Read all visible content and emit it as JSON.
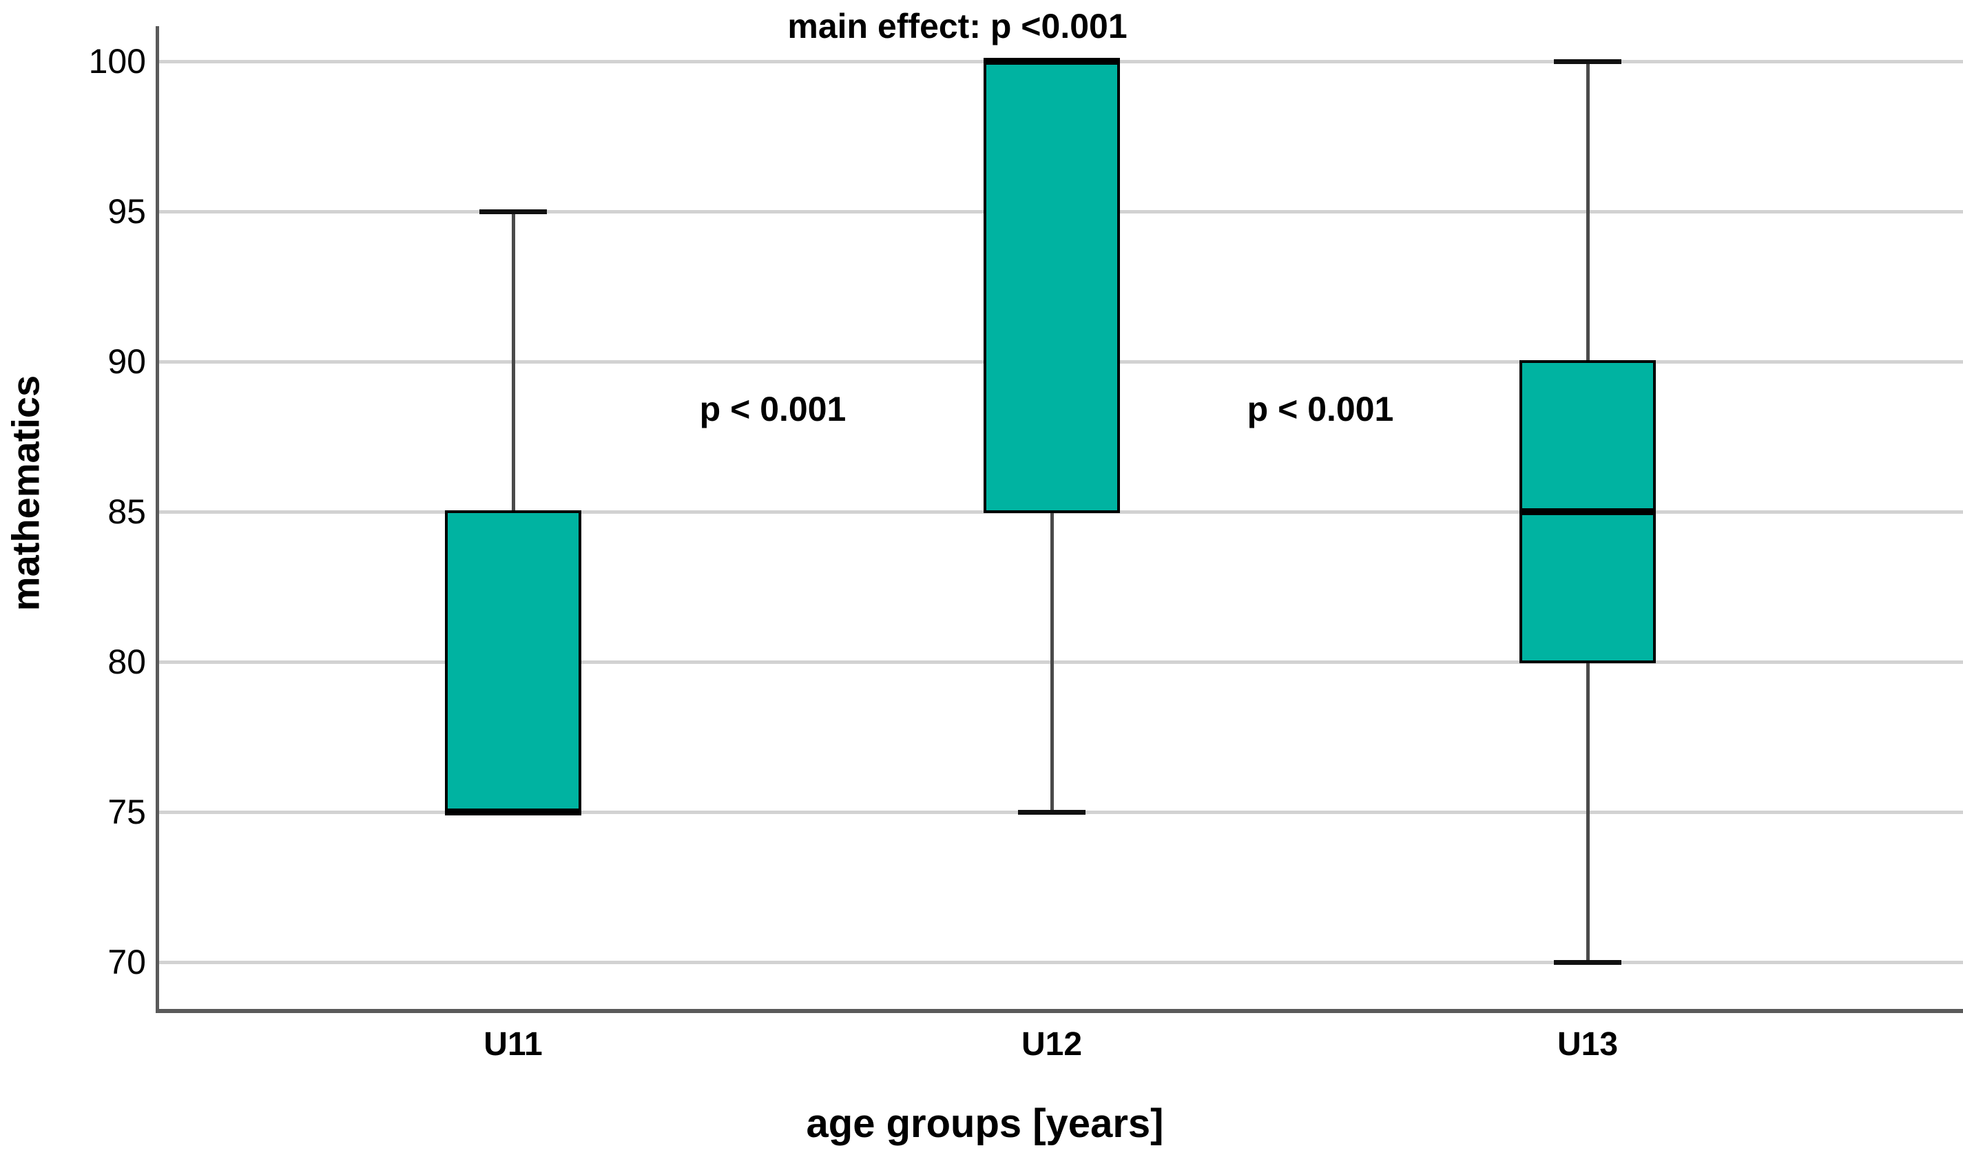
{
  "chart_data": {
    "type": "box",
    "title": "",
    "xlabel": "age groups [years]",
    "ylabel": "mathematics",
    "categories": [
      "U11",
      "U12",
      "U13"
    ],
    "yticks": [
      70,
      75,
      80,
      85,
      90,
      95,
      100
    ],
    "ylim": [
      68.4,
      101.1
    ],
    "grid": "horizontal-only",
    "legend": "none",
    "series": [
      {
        "label": "U11",
        "whislo": 75,
        "q1": 75,
        "median": 75,
        "q3": 85,
        "whishi": 95
      },
      {
        "label": "U12",
        "whislo": 75,
        "q1": 85,
        "median": 100,
        "q3": 100,
        "whishi": 100
      },
      {
        "label": "U13",
        "whislo": 70,
        "q1": 80,
        "median": 85,
        "q3": 90,
        "whishi": 100
      }
    ],
    "annotations": [
      {
        "text": "main effect: p <0.001",
        "position": "top, above U12"
      },
      {
        "text": "p < 0.001",
        "position": "between U11 and U12, near value 88"
      },
      {
        "text": "p < 0.001",
        "position": "between U12 and U13, near value 88"
      }
    ],
    "colors": {
      "box_fill": "#00b3a1",
      "box_border": "#000000",
      "median": "#000000",
      "whisker": "#4a4a4a",
      "whisker_cap": "#111111",
      "gridline": "#d2d2d2",
      "axis": "#5a5a5a",
      "text": "#000000",
      "background": "#ffffff"
    }
  }
}
